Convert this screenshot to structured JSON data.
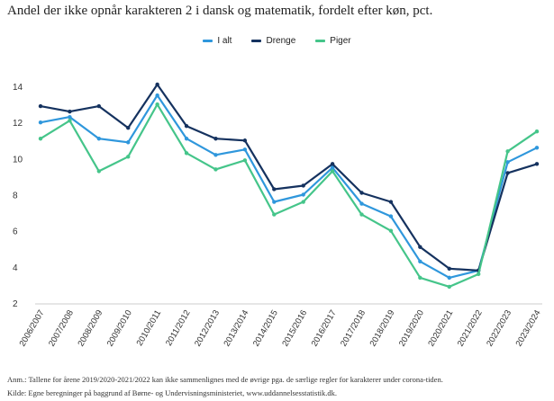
{
  "chart_data": {
    "type": "line",
    "title": "Andel der ikke opnår karakteren 2 i dansk og matematik, fordelt efter køn, pct.",
    "xlabel": "",
    "ylabel": "",
    "ylim": [
      2,
      14
    ],
    "yticks": [
      2,
      4,
      6,
      8,
      10,
      12,
      14
    ],
    "grid": false,
    "legend_position": "top-center",
    "categories": [
      "2006/2007",
      "2007/2008",
      "2008/2009",
      "2009/2010",
      "2010/2011",
      "2011/2012",
      "2012/2013",
      "2013/2014",
      "2014/2015",
      "2015/2016",
      "2016/2017",
      "2017/2018",
      "2018/2019",
      "2019/2020",
      "2020/2021",
      "2021/2022",
      "2022/2023",
      "2023/2024"
    ],
    "series": [
      {
        "name": "I alt",
        "color": "#2f97dc",
        "values": [
          12.0,
          12.3,
          11.1,
          10.9,
          13.5,
          11.1,
          10.2,
          10.5,
          7.6,
          8.0,
          9.5,
          7.5,
          6.8,
          4.3,
          3.4,
          3.8,
          9.8,
          10.6
        ]
      },
      {
        "name": "Drenge",
        "color": "#15325f",
        "values": [
          12.9,
          12.6,
          12.9,
          11.7,
          14.1,
          11.8,
          11.1,
          11.0,
          8.3,
          8.5,
          9.7,
          8.1,
          7.6,
          5.1,
          3.9,
          3.8,
          9.2,
          9.7
        ]
      },
      {
        "name": "Piger",
        "color": "#45c58a",
        "values": [
          11.1,
          12.1,
          9.3,
          10.1,
          13.0,
          10.3,
          9.4,
          9.9,
          6.9,
          7.6,
          9.3,
          6.9,
          6.0,
          3.4,
          2.9,
          3.6,
          10.4,
          11.5
        ]
      }
    ]
  },
  "notes": {
    "anm": "Anm.: Tallene for årene 2019/2020-2021/2022 kan ikke sammenlignes med de øvrige pga. de særlige regler for karakterer under corona-tiden.",
    "kilde": "Kilde: Egne beregninger på baggrund af Børne- og Undervisningsministeriet, www.uddannelsesstatistik.dk."
  }
}
